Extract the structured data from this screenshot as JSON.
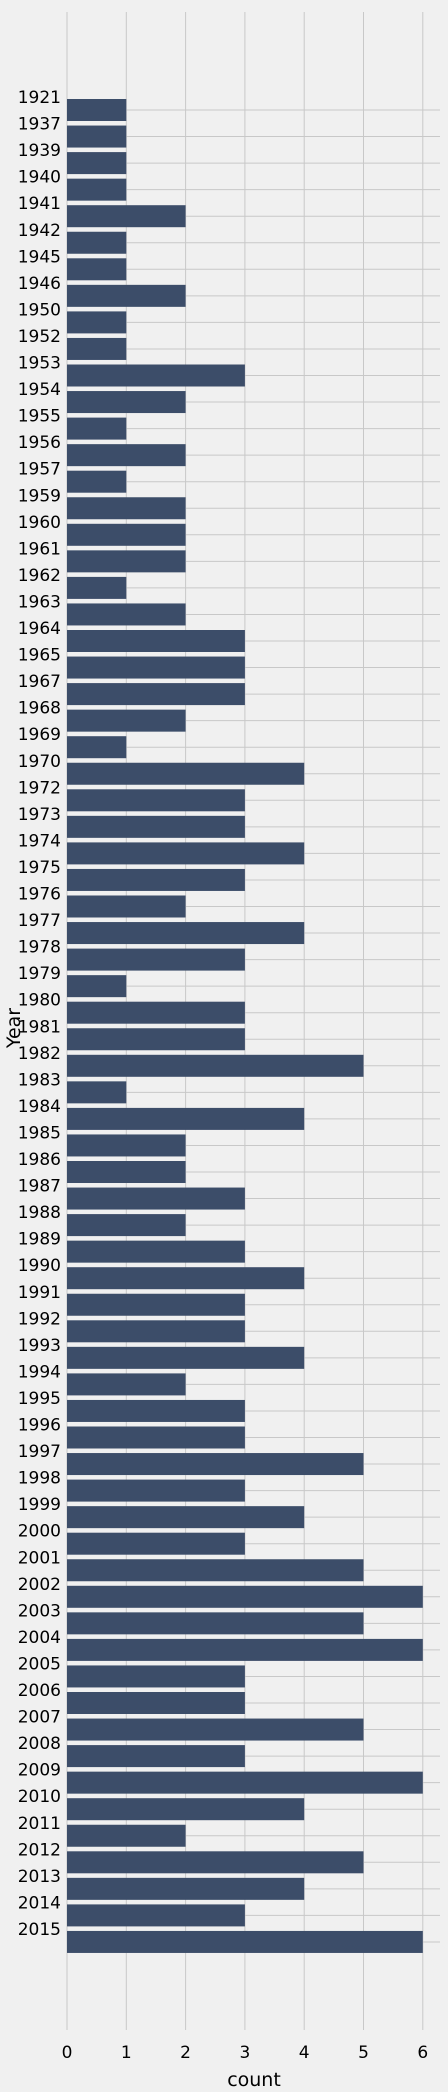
{
  "colors": {
    "background": "#f0f0f0",
    "bar": "#3c4d69",
    "grid": "#c8c8c8"
  },
  "chart_data": {
    "type": "bar",
    "orientation": "horizontal",
    "xlabel": "count",
    "ylabel": "Year",
    "xlim": [
      0,
      6.3
    ],
    "xticks": [
      0,
      1,
      2,
      3,
      4,
      5,
      6
    ],
    "grid": true,
    "categories": [
      "1921",
      "1937",
      "1939",
      "1940",
      "1941",
      "1942",
      "1945",
      "1946",
      "1950",
      "1952",
      "1953",
      "1954",
      "1955",
      "1956",
      "1957",
      "1959",
      "1960",
      "1961",
      "1962",
      "1963",
      "1964",
      "1965",
      "1967",
      "1968",
      "1969",
      "1970",
      "1972",
      "1973",
      "1974",
      "1975",
      "1976",
      "1977",
      "1978",
      "1979",
      "1980",
      "1981",
      "1982",
      "1983",
      "1984",
      "1985",
      "1986",
      "1987",
      "1988",
      "1989",
      "1990",
      "1991",
      "1992",
      "1993",
      "1994",
      "1995",
      "1996",
      "1997",
      "1998",
      "1999",
      "2000",
      "2001",
      "2002",
      "2003",
      "2004",
      "2005",
      "2006",
      "2007",
      "2008",
      "2009",
      "2010",
      "2011",
      "2012",
      "2013",
      "2014",
      "2015"
    ],
    "values": [
      1,
      1,
      1,
      1,
      2,
      1,
      1,
      2,
      1,
      1,
      3,
      2,
      1,
      2,
      1,
      2,
      2,
      2,
      1,
      2,
      3,
      3,
      3,
      2,
      1,
      4,
      3,
      3,
      4,
      3,
      2,
      4,
      3,
      1,
      3,
      3,
      5,
      1,
      4,
      2,
      2,
      3,
      2,
      3,
      4,
      3,
      3,
      4,
      2,
      3,
      3,
      5,
      3,
      4,
      3,
      5,
      6,
      5,
      6,
      3,
      3,
      5,
      3,
      6,
      4,
      2,
      5,
      4,
      3,
      6
    ]
  }
}
